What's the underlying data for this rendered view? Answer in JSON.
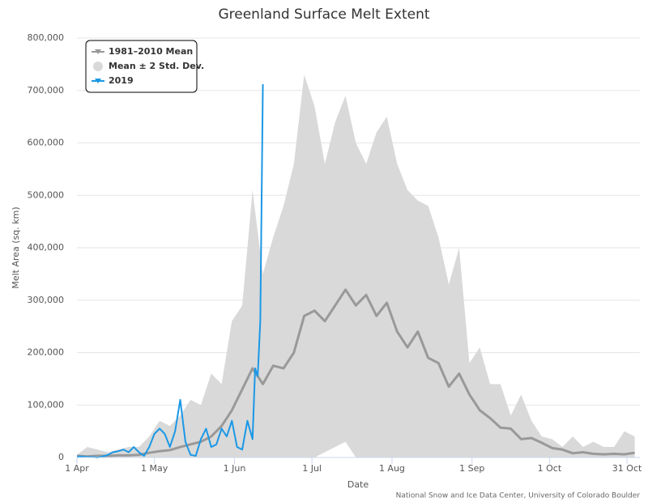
{
  "chart_data": {
    "type": "line",
    "title": "Greenland Surface Melt Extent",
    "x_label": "Date",
    "y_label": "Melt Area (sq. km)",
    "credit": "National Snow and Ice Data Center, University of Colorado Boulder",
    "xlim": [
      0,
      218
    ],
    "ylim": [
      0,
      800000
    ],
    "xticks": [
      {
        "value": 0,
        "label": "1 Apr"
      },
      {
        "value": 30,
        "label": "1 May"
      },
      {
        "value": 61,
        "label": "1 Jun"
      },
      {
        "value": 91,
        "label": "1 Jul"
      },
      {
        "value": 122,
        "label": "1 Aug"
      },
      {
        "value": 153,
        "label": "1 Sep"
      },
      {
        "value": 183,
        "label": "1 Oct"
      },
      {
        "value": 213,
        "label": "31 Oct"
      }
    ],
    "yticks": [
      0,
      {
        "value": 100000,
        "label": "100,000"
      },
      {
        "value": 200000,
        "label": "200,000"
      },
      {
        "value": 300000,
        "label": "300,000"
      },
      {
        "value": 400000,
        "label": "400,000"
      },
      {
        "value": 500000,
        "label": "500,000"
      },
      {
        "value": 600000,
        "label": "600,000"
      },
      {
        "value": 700000,
        "label": "700,000"
      },
      {
        "value": 800000,
        "label": "800,000"
      }
    ],
    "grid": true,
    "legend": "top-left",
    "x": [
      0,
      4,
      8,
      12,
      16,
      20,
      24,
      28,
      32,
      36,
      40,
      44,
      48,
      52,
      56,
      60,
      64,
      68,
      72,
      76,
      80,
      84,
      88,
      92,
      96,
      100,
      104,
      108,
      112,
      116,
      120,
      124,
      128,
      132,
      136,
      140,
      144,
      148,
      152,
      156,
      160,
      164,
      168,
      172,
      176,
      180,
      184,
      188,
      192,
      196,
      200,
      204,
      208,
      212,
      216
    ],
    "series": [
      {
        "name": "Mean ± 2 Std. Dev.",
        "color": "#d9d9d9",
        "low": [
          0,
          0,
          0,
          0,
          0,
          0,
          0,
          0,
          0,
          0,
          0,
          0,
          0,
          0,
          0,
          0,
          0,
          0,
          0,
          0,
          0,
          0,
          0,
          0,
          10000,
          20000,
          30000,
          0,
          0,
          0,
          0,
          0,
          0,
          0,
          0,
          0,
          0,
          0,
          0,
          0,
          0,
          0,
          0,
          0,
          0,
          0,
          0,
          0,
          0,
          0,
          0,
          0,
          0,
          0,
          0
        ],
        "high": [
          5000,
          20000,
          15000,
          10000,
          15000,
          20000,
          20000,
          40000,
          70000,
          60000,
          80000,
          110000,
          100000,
          160000,
          140000,
          260000,
          290000,
          510000,
          350000,
          420000,
          480000,
          560000,
          730000,
          670000,
          560000,
          640000,
          690000,
          600000,
          560000,
          620000,
          650000,
          560000,
          510000,
          490000,
          480000,
          420000,
          330000,
          400000,
          180000,
          210000,
          140000,
          140000,
          80000,
          120000,
          70000,
          40000,
          35000,
          20000,
          40000,
          20000,
          30000,
          20000,
          20000,
          50000,
          40000
        ]
      },
      {
        "name": "1981–2010 Mean",
        "color": "#999999",
        "values": [
          3000,
          2000,
          3000,
          3000,
          4000,
          4000,
          5000,
          9000,
          12000,
          14000,
          20000,
          25000,
          30000,
          40000,
          60000,
          90000,
          130000,
          170000,
          140000,
          175000,
          170000,
          200000,
          270000,
          280000,
          260000,
          290000,
          320000,
          290000,
          310000,
          270000,
          295000,
          240000,
          210000,
          240000,
          190000,
          180000,
          135000,
          160000,
          120000,
          90000,
          75000,
          57000,
          55000,
          35000,
          37000,
          28000,
          18000,
          15000,
          8000,
          10000,
          7000,
          6000,
          7000,
          6000,
          9000
        ]
      },
      {
        "name": "2019",
        "color": "#1a98e6",
        "x": [
          0,
          2,
          4,
          6,
          8,
          10,
          12,
          14,
          16,
          18,
          20,
          22,
          24,
          26,
          28,
          30,
          32,
          34,
          36,
          38,
          40,
          42,
          44,
          46,
          48,
          50,
          52,
          54,
          56,
          58,
          60,
          62,
          64,
          66,
          68,
          69,
          70,
          71,
          72
        ],
        "values": [
          2000,
          2000,
          1000,
          1000,
          0,
          2000,
          5000,
          10000,
          12000,
          15000,
          10000,
          20000,
          10000,
          3000,
          20000,
          45000,
          55000,
          45000,
          20000,
          50000,
          110000,
          30000,
          5000,
          3000,
          35000,
          55000,
          20000,
          25000,
          55000,
          40000,
          70000,
          20000,
          15000,
          70000,
          35000,
          170000,
          155000,
          260000,
          712000
        ]
      }
    ]
  }
}
